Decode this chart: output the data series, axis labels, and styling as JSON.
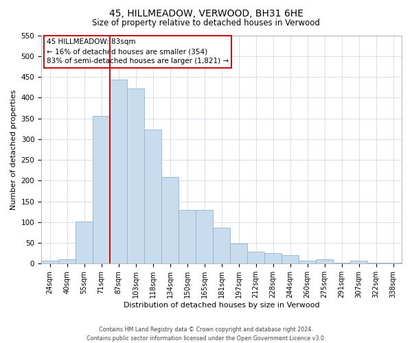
{
  "title": "45, HILLMEADOW, VERWOOD, BH31 6HE",
  "subtitle": "Size of property relative to detached houses in Verwood",
  "xlabel": "Distribution of detached houses by size in Verwood",
  "ylabel": "Number of detached properties",
  "bar_color": "#c8dced",
  "bar_edge_color": "#8eb4d0",
  "categories": [
    "24sqm",
    "40sqm",
    "55sqm",
    "71sqm",
    "87sqm",
    "103sqm",
    "118sqm",
    "134sqm",
    "150sqm",
    "165sqm",
    "181sqm",
    "197sqm",
    "212sqm",
    "228sqm",
    "244sqm",
    "260sqm",
    "275sqm",
    "291sqm",
    "307sqm",
    "322sqm",
    "338sqm"
  ],
  "values": [
    7,
    10,
    102,
    356,
    443,
    422,
    323,
    209,
    129,
    129,
    86,
    48,
    29,
    25,
    20,
    7,
    10,
    2,
    7,
    2,
    2
  ],
  "ylim": [
    0,
    550
  ],
  "yticks": [
    0,
    50,
    100,
    150,
    200,
    250,
    300,
    350,
    400,
    450,
    500,
    550
  ],
  "red_line_index": 4,
  "red_line_color": "#cc1111",
  "marker_label": "45 HILLMEADOW: 83sqm",
  "annotation_line1": "← 16% of detached houses are smaller (354)",
  "annotation_line2": "83% of semi-detached houses are larger (1,821) →",
  "footer1": "Contains HM Land Registry data © Crown copyright and database right 2024.",
  "footer2": "Contains public sector information licensed under the Open Government Licence v3.0."
}
